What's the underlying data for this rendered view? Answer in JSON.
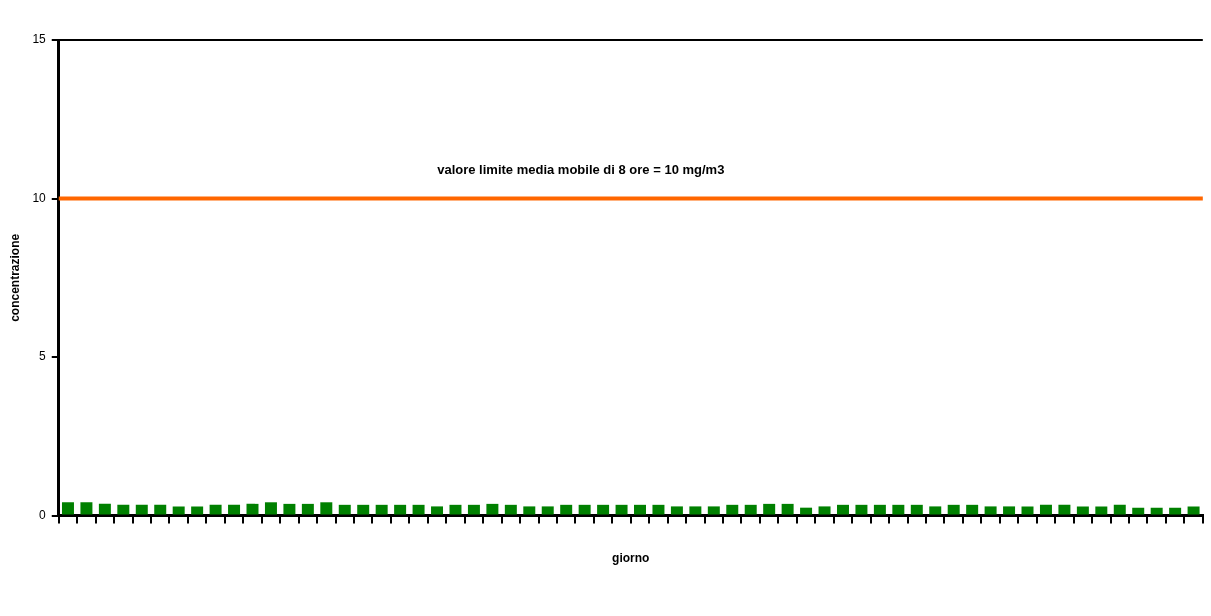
{
  "chart_data": {
    "type": "bar",
    "xlabel": "giorno",
    "ylabel": "concentrazione",
    "categories": [
      null,
      null,
      null,
      null,
      null,
      null,
      null,
      null,
      null,
      null,
      null,
      null,
      null,
      null,
      null,
      null,
      null,
      null,
      null,
      null,
      null,
      null,
      null,
      null,
      null,
      null,
      null,
      null,
      null,
      null,
      null,
      null,
      null,
      null,
      null,
      null,
      null,
      null,
      null,
      null,
      null,
      null,
      null,
      null,
      null,
      null,
      null,
      null,
      null,
      null,
      null,
      null,
      null,
      null,
      null,
      null,
      null,
      null,
      null,
      null,
      null,
      null
    ],
    "values": [
      0.42,
      0.42,
      0.37,
      0.34,
      0.34,
      0.34,
      0.29,
      0.29,
      0.34,
      0.34,
      0.37,
      0.42,
      0.37,
      0.37,
      0.42,
      0.34,
      0.34,
      0.34,
      0.34,
      0.34,
      0.29,
      0.34,
      0.34,
      0.37,
      0.34,
      0.29,
      0.29,
      0.34,
      0.34,
      0.34,
      0.34,
      0.34,
      0.34,
      0.29,
      0.29,
      0.29,
      0.34,
      0.34,
      0.37,
      0.37,
      0.25,
      0.29,
      0.34,
      0.34,
      0.34,
      0.34,
      0.34,
      0.29,
      0.34,
      0.34,
      0.29,
      0.29,
      0.29,
      0.34,
      0.34,
      0.29,
      0.29,
      0.34,
      0.25,
      0.25,
      0.25,
      0.29
    ],
    "color": "#008000",
    "ylim": [
      0,
      15
    ],
    "yticks": [
      0,
      5,
      10,
      15
    ],
    "grid": false,
    "legend": false,
    "ref_lines": [
      {
        "axis": "y",
        "value": 10,
        "label": "valore limite media mobile di 8 ore = 10 mg/m3",
        "color": "#ff6600"
      }
    ]
  }
}
